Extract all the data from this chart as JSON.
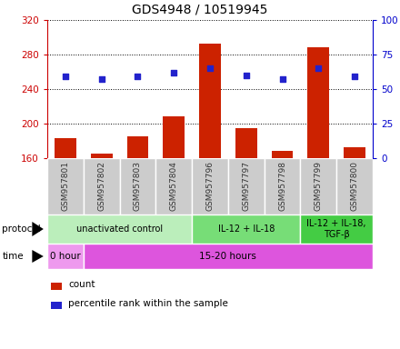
{
  "title": "GDS4948 / 10519945",
  "samples": [
    "GSM957801",
    "GSM957802",
    "GSM957803",
    "GSM957804",
    "GSM957796",
    "GSM957797",
    "GSM957798",
    "GSM957799",
    "GSM957800"
  ],
  "counts": [
    183,
    165,
    185,
    208,
    293,
    195,
    168,
    288,
    173
  ],
  "percentile_ranks": [
    59,
    57,
    59,
    62,
    65,
    60,
    57,
    65,
    59
  ],
  "ylim_left": [
    160,
    320
  ],
  "ylim_right": [
    0,
    100
  ],
  "yticks_left": [
    160,
    200,
    240,
    280,
    320
  ],
  "yticks_right": [
    0,
    25,
    50,
    75,
    100
  ],
  "bar_color": "#cc2200",
  "dot_color": "#2222cc",
  "bg_color": "#ffffff",
  "protocol_groups": [
    {
      "label": "unactivated control",
      "start": 0,
      "end": 4,
      "color": "#bbeebb"
    },
    {
      "label": "IL-12 + IL-18",
      "start": 4,
      "end": 7,
      "color": "#77dd77"
    },
    {
      "label": "IL-12 + IL-18,\nTGF-β",
      "start": 7,
      "end": 9,
      "color": "#44cc44"
    }
  ],
  "time_groups": [
    {
      "label": "0 hour",
      "start": 0,
      "end": 1,
      "color": "#ee99ee"
    },
    {
      "label": "15-20 hours",
      "start": 1,
      "end": 9,
      "color": "#dd55dd"
    }
  ],
  "xlabel_color": "#333333",
  "left_axis_color": "#cc0000",
  "right_axis_color": "#0000cc",
  "sample_box_color": "#cccccc",
  "sample_box_edge": "#ffffff"
}
